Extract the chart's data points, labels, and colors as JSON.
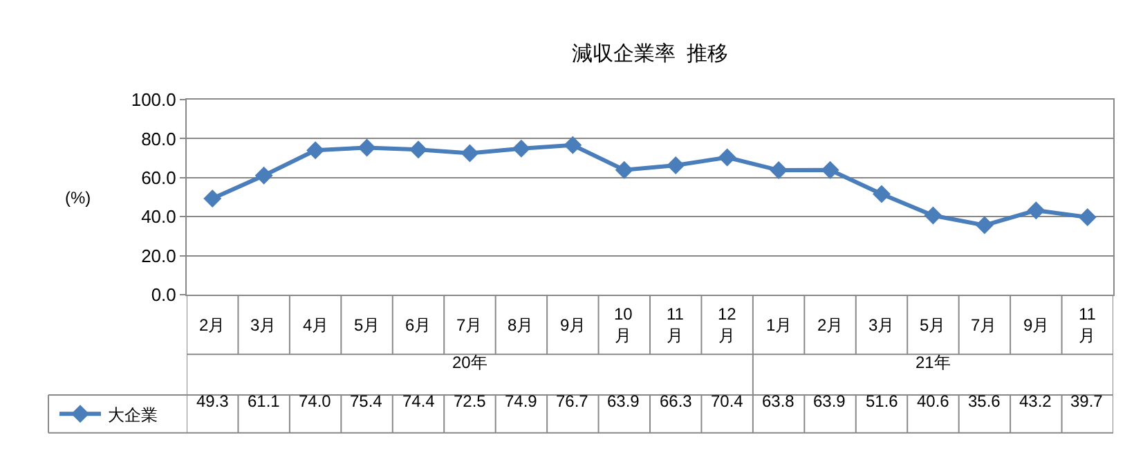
{
  "chart_data": {
    "type": "line",
    "title": "減収企業率  推移",
    "ylabel": "(%)",
    "categories": [
      "2月",
      "3月",
      "4月",
      "5月",
      "6月",
      "7月",
      "8月",
      "9月",
      "10月",
      "11月",
      "12月",
      "1月",
      "2月",
      "3月",
      "5月",
      "7月",
      "9月",
      "11月"
    ],
    "annotations": [
      "20年",
      "21年"
    ],
    "series": [
      {
        "name": "大企業",
        "color": "#4a7ebb",
        "values": [
          49.3,
          61.1,
          74.0,
          75.4,
          74.4,
          72.5,
          74.9,
          76.7,
          63.9,
          66.3,
          70.4,
          63.8,
          63.9,
          51.6,
          40.6,
          35.6,
          43.2,
          39.7
        ],
        "value_labels": [
          "49.3",
          "61.1",
          "74.0",
          "75.4",
          "74.4",
          "72.5",
          "74.9",
          "76.7",
          "63.9",
          "66.3",
          "70.4",
          "63.8",
          "63.9",
          "51.6",
          "40.6",
          "35.6",
          "43.2",
          "39.7"
        ]
      }
    ],
    "ylim": [
      0,
      100
    ],
    "yticks": [
      {
        "value": 0,
        "label": "0.0"
      },
      {
        "value": 20,
        "label": "20.0"
      },
      {
        "value": 40,
        "label": "40.0"
      },
      {
        "value": 60,
        "label": "60.0"
      },
      {
        "value": 80,
        "label": "80.0"
      },
      {
        "value": 100,
        "label": "100.0"
      }
    ],
    "grid": "y",
    "marker": "diamond",
    "line_style": "solid",
    "legend": "bottom left"
  }
}
